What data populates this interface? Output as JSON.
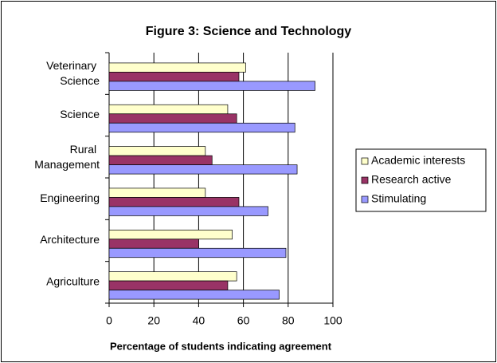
{
  "chart_data": {
    "type": "hbar",
    "title": "Figure 3: Science and Technology",
    "x_label": "Percentage of students indicating agreement",
    "categories": [
      "Veterinary Science",
      "Science",
      "Rural Management",
      "Engineering",
      "Architecture",
      "Agriculture"
    ],
    "series": [
      {
        "name": "Academic interests",
        "color": "#ffffcc",
        "values": [
          61,
          53,
          43,
          43,
          55,
          57
        ]
      },
      {
        "name": "Research active",
        "color": "#993366",
        "values": [
          58,
          57,
          46,
          58,
          40,
          53
        ]
      },
      {
        "name": "Stimulating",
        "color": "#9999ff",
        "values": [
          92,
          83,
          84,
          71,
          79,
          76
        ]
      }
    ],
    "xlim": [
      0,
      100
    ],
    "xticks": [
      0,
      20,
      40,
      60,
      80,
      100
    ],
    "grid": true,
    "legend": "right"
  }
}
